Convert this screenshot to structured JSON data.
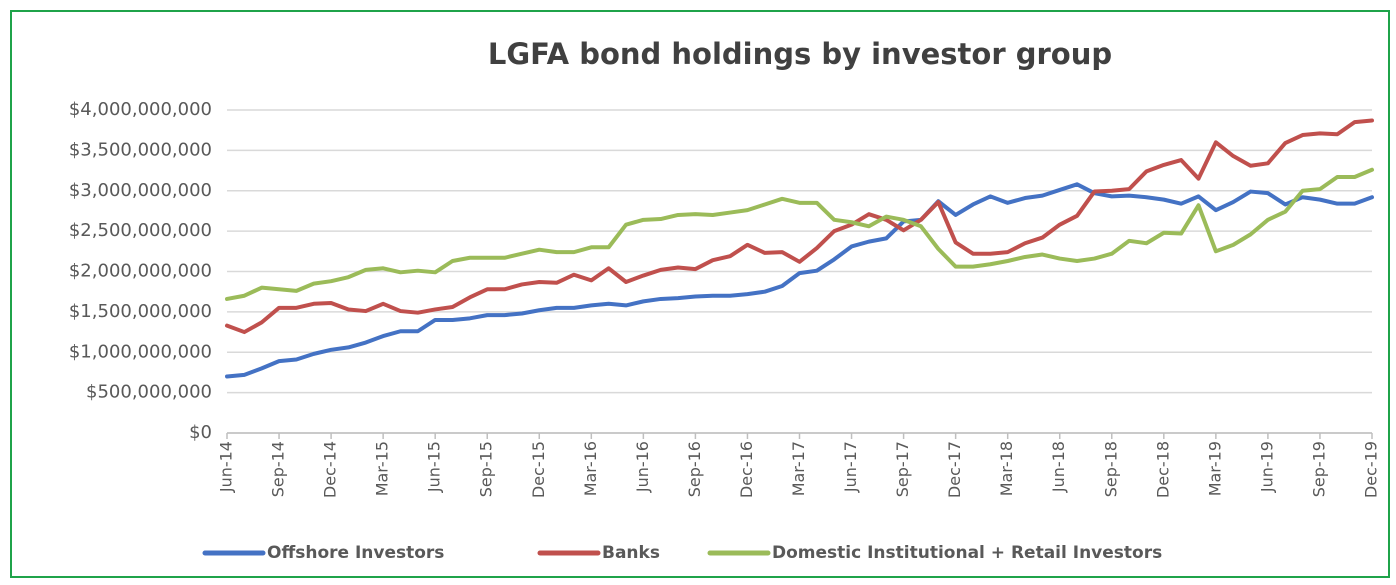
{
  "chart_data": {
    "type": "line",
    "title": "LGFA  bond holdings by investor group",
    "categories": [
      "Jun-14",
      null,
      null,
      "Sep-14",
      null,
      null,
      "Dec-14",
      null,
      null,
      "Mar-15",
      null,
      null,
      "Jun-15",
      null,
      null,
      "Sep-15",
      null,
      null,
      "Dec-15",
      null,
      null,
      "Mar-16",
      null,
      null,
      "Jun-16",
      null,
      null,
      "Sep-16",
      null,
      null,
      "Dec-16",
      null,
      null,
      "Mar-17",
      null,
      null,
      "Jun-17",
      null,
      null,
      "Sep-17",
      null,
      null,
      "Dec-17",
      null,
      null,
      "Mar-18",
      null,
      null,
      "Jun-18",
      null,
      null,
      "Sep-18",
      null,
      null,
      "Dec-18",
      null,
      null,
      "Mar-19",
      null,
      null,
      "Jun-19",
      null,
      null,
      "Sep-19",
      null,
      null,
      "Dec-19"
    ],
    "series": [
      {
        "name": "Offshore Investors",
        "color": "#4472c4",
        "values": [
          700000000,
          720000000,
          800000000,
          890000000,
          910000000,
          980000000,
          1030000000,
          1060000000,
          1120000000,
          1200000000,
          1260000000,
          1260000000,
          1400000000,
          1400000000,
          1420000000,
          1460000000,
          1460000000,
          1480000000,
          1520000000,
          1550000000,
          1550000000,
          1580000000,
          1600000000,
          1580000000,
          1630000000,
          1660000000,
          1670000000,
          1690000000,
          1700000000,
          1700000000,
          1720000000,
          1750000000,
          1820000000,
          1980000000,
          2010000000,
          2150000000,
          2310000000,
          2370000000,
          2410000000,
          2620000000,
          2640000000,
          2870000000,
          2700000000,
          2830000000,
          2930000000,
          2850000000,
          2910000000,
          2940000000,
          3010000000,
          3080000000,
          2970000000,
          2930000000,
          2940000000,
          2920000000,
          2890000000,
          2840000000,
          2930000000,
          2760000000,
          2860000000,
          2990000000,
          2970000000,
          2830000000,
          2920000000,
          2890000000,
          2840000000,
          2840000000,
          2920000000
        ]
      },
      {
        "name": "Banks",
        "color": "#c0504d",
        "values": [
          1330000000,
          1250000000,
          1370000000,
          1550000000,
          1550000000,
          1600000000,
          1610000000,
          1530000000,
          1510000000,
          1600000000,
          1510000000,
          1490000000,
          1530000000,
          1560000000,
          1680000000,
          1780000000,
          1780000000,
          1840000000,
          1870000000,
          1860000000,
          1960000000,
          1890000000,
          2040000000,
          1870000000,
          1950000000,
          2020000000,
          2050000000,
          2030000000,
          2140000000,
          2190000000,
          2330000000,
          2230000000,
          2240000000,
          2120000000,
          2290000000,
          2500000000,
          2580000000,
          2710000000,
          2640000000,
          2510000000,
          2640000000,
          2860000000,
          2360000000,
          2220000000,
          2220000000,
          2240000000,
          2350000000,
          2420000000,
          2580000000,
          2690000000,
          2990000000,
          3000000000,
          3020000000,
          3240000000,
          3320000000,
          3380000000,
          3150000000,
          3600000000,
          3430000000,
          3310000000,
          3340000000,
          3590000000,
          3690000000,
          3710000000,
          3700000000,
          3850000000,
          3870000000
        ]
      },
      {
        "name": "Domestic Institutional + Retail Investors",
        "color": "#9bbb59",
        "values": [
          1660000000,
          1700000000,
          1800000000,
          1780000000,
          1760000000,
          1850000000,
          1880000000,
          1930000000,
          2020000000,
          2040000000,
          1990000000,
          2010000000,
          1990000000,
          2130000000,
          2170000000,
          2170000000,
          2170000000,
          2220000000,
          2270000000,
          2240000000,
          2240000000,
          2300000000,
          2300000000,
          2580000000,
          2640000000,
          2650000000,
          2700000000,
          2710000000,
          2700000000,
          2730000000,
          2760000000,
          2830000000,
          2900000000,
          2850000000,
          2850000000,
          2640000000,
          2610000000,
          2560000000,
          2680000000,
          2640000000,
          2560000000,
          2280000000,
          2060000000,
          2060000000,
          2090000000,
          2130000000,
          2180000000,
          2210000000,
          2160000000,
          2130000000,
          2160000000,
          2220000000,
          2380000000,
          2350000000,
          2480000000,
          2470000000,
          2820000000,
          2250000000,
          2330000000,
          2460000000,
          2640000000,
          2740000000,
          3000000000,
          3020000000,
          3170000000,
          3170000000,
          3260000000
        ]
      }
    ],
    "ylim": [
      0,
      4000000000
    ],
    "yticks": [
      {
        "value": 0,
        "label": "$0"
      },
      {
        "value": 500000000,
        "label": "$500,000,000"
      },
      {
        "value": 1000000000,
        "label": "$1,000,000,000"
      },
      {
        "value": 1500000000,
        "label": "$1,500,000,000"
      },
      {
        "value": 2000000000,
        "label": "$2,000,000,000"
      },
      {
        "value": 2500000000,
        "label": "$2,500,000,000"
      },
      {
        "value": 3000000000,
        "label": "$3,000,000,000"
      },
      {
        "value": 3500000000,
        "label": "$3,500,000,000"
      },
      {
        "value": 4000000000,
        "label": "$4,000,000,000"
      }
    ],
    "grid": true,
    "legend": "bottom"
  }
}
